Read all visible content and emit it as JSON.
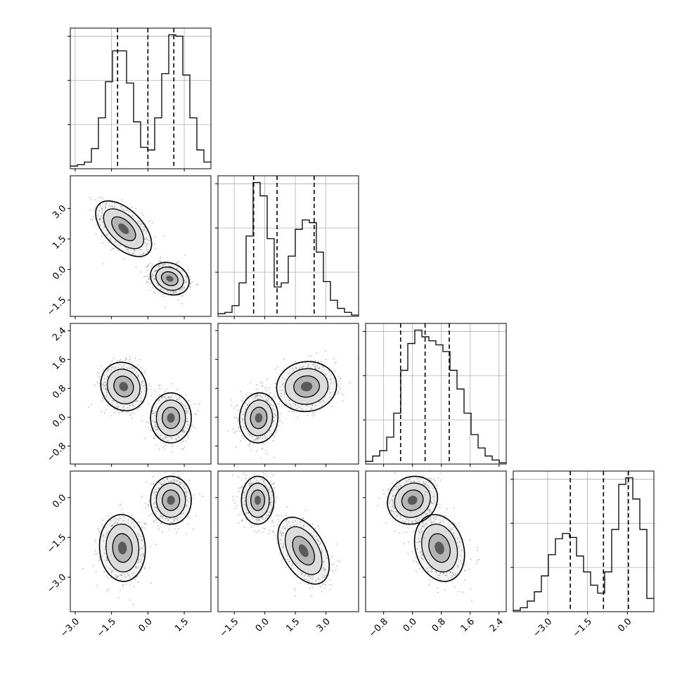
{
  "chart_data": {
    "type": "corner",
    "params": 4,
    "grid": true,
    "colors": {
      "frame": "#000000",
      "grid": "#b0b0b0",
      "points": "#808080",
      "line": "#000000"
    },
    "tick_labels": {
      "p0": [
        "−3.0",
        "−1.5",
        "0.0",
        "1.5"
      ],
      "p1": [
        "−1.5",
        "0.0",
        "1.5",
        "3.0"
      ],
      "p2": [
        "−0.8",
        "0.0",
        "0.8",
        "1.6",
        "2.4"
      ],
      "p3": [
        "−3.0",
        "−1.5",
        "0.0"
      ]
    },
    "ranges": {
      "p0": [
        -3.2,
        2.6
      ],
      "p1": [
        -2.3,
        4.6
      ],
      "p2": [
        -1.3,
        2.6
      ],
      "p3": [
        -4.3,
        1.0
      ]
    },
    "histograms": [
      {
        "param": "p0",
        "quantiles": [
          -1.25,
          0.0,
          1.07
        ],
        "bins": [
          -3.2,
          -2.91,
          -2.62,
          -2.33,
          -2.04,
          -1.75,
          -1.46,
          -1.17,
          -0.88,
          -0.59,
          -0.3,
          -0.01,
          0.28,
          0.57,
          0.86,
          1.15,
          1.44,
          1.73,
          2.02,
          2.31,
          2.6
        ],
        "counts": [
          2,
          3,
          5,
          15,
          38,
          65,
          88,
          88,
          64,
          35,
          16,
          14,
          38,
          71,
          100,
          99,
          70,
          38,
          14,
          5
        ]
      },
      {
        "param": "p1",
        "quantiles": [
          -0.55,
          0.6,
          2.42
        ],
        "bins": [
          -2.3,
          -1.955,
          -1.61,
          -1.265,
          -0.92,
          -0.575,
          -0.23,
          0.115,
          0.46,
          0.805,
          1.15,
          1.495,
          1.84,
          2.185,
          2.53,
          2.875,
          3.22,
          3.565,
          3.91,
          4.255,
          4.6
        ],
        "counts": [
          2,
          3,
          8,
          25,
          60,
          100,
          90,
          58,
          22,
          25,
          45,
          65,
          72,
          70,
          48,
          26,
          12,
          6,
          3,
          1
        ]
      },
      {
        "param": "p2",
        "quantiles": [
          -0.33,
          0.35,
          1.02
        ],
        "bins": [
          -1.3,
          -1.105,
          -0.91,
          -0.715,
          -0.52,
          -0.325,
          -0.13,
          0.065,
          0.26,
          0.455,
          0.65,
          0.845,
          1.04,
          1.235,
          1.43,
          1.625,
          1.82,
          2.015,
          2.21,
          2.405,
          2.6
        ],
        "counts": [
          2,
          6,
          10,
          20,
          38,
          70,
          90,
          100,
          95,
          92,
          89,
          84,
          70,
          56,
          38,
          22,
          12,
          6,
          3,
          1
        ]
      },
      {
        "param": "p3",
        "quantiles": [
          -2.15,
          -0.9,
          0.04
        ],
        "bins": [
          -4.3,
          -4.035,
          -3.77,
          -3.505,
          -3.24,
          -2.975,
          -2.71,
          -2.445,
          -2.18,
          -1.915,
          -1.65,
          -1.385,
          -1.12,
          -0.855,
          -0.59,
          -0.325,
          -0.06,
          0.205,
          0.47,
          0.735,
          1.0
        ],
        "counts": [
          1,
          3,
          8,
          15,
          27,
          43,
          55,
          59,
          56,
          42,
          30,
          20,
          14,
          30,
          62,
          96,
          101,
          85,
          62,
          10
        ]
      }
    ],
    "panels": [
      {
        "x": "p0",
        "y": "p1",
        "modes": [
          {
            "mx": -1.0,
            "my": 2.0,
            "sx": 0.55,
            "sy": 0.65,
            "rho": -0.55,
            "w": 0.52
          },
          {
            "mx": 0.9,
            "my": -0.45,
            "sx": 0.38,
            "sy": 0.38,
            "rho": -0.2,
            "w": 0.48
          }
        ]
      },
      {
        "x": "p0",
        "y": "p2",
        "modes": [
          {
            "mx": -1.0,
            "my": 0.85,
            "sx": 0.45,
            "sy": 0.32,
            "rho": -0.1,
            "w": 0.52
          },
          {
            "mx": 0.95,
            "my": -0.02,
            "sx": 0.4,
            "sy": 0.33,
            "rho": 0.0,
            "w": 0.48
          }
        ]
      },
      {
        "x": "p1",
        "y": "p2",
        "modes": [
          {
            "mx": 2.05,
            "my": 0.85,
            "sx": 0.7,
            "sy": 0.33,
            "rho": 0.05,
            "w": 0.52
          },
          {
            "mx": -0.3,
            "my": -0.02,
            "sx": 0.45,
            "sy": 0.33,
            "rho": 0.05,
            "w": 0.48
          }
        ]
      },
      {
        "x": "p0",
        "y": "p3",
        "modes": [
          {
            "mx": -1.05,
            "my": -1.9,
            "sx": 0.45,
            "sy": 0.6,
            "rho": -0.05,
            "w": 0.5
          },
          {
            "mx": 0.95,
            "my": -0.1,
            "sx": 0.4,
            "sy": 0.43,
            "rho": 0.0,
            "w": 0.5
          }
        ]
      },
      {
        "x": "p1",
        "y": "p3",
        "modes": [
          {
            "mx": -0.35,
            "my": -0.1,
            "sx": 0.38,
            "sy": 0.43,
            "rho": 0.0,
            "w": 0.5
          },
          {
            "mx": 1.9,
            "my": -2.0,
            "sx": 0.6,
            "sy": 0.6,
            "rho": -0.45,
            "w": 0.5
          }
        ]
      },
      {
        "x": "p2",
        "y": "p3",
        "modes": [
          {
            "mx": 0.0,
            "my": -0.1,
            "sx": 0.33,
            "sy": 0.43,
            "rho": 0.1,
            "w": 0.5
          },
          {
            "mx": 0.75,
            "my": -1.9,
            "sx": 0.33,
            "sy": 0.6,
            "rho": -0.2,
            "w": 0.5
          }
        ]
      }
    ]
  }
}
